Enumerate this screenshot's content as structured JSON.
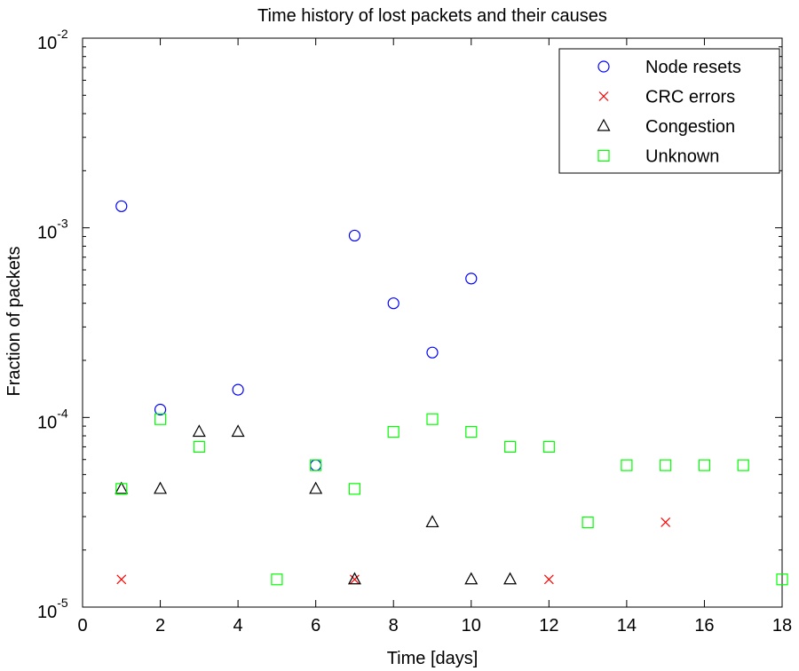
{
  "chart_data": {
    "type": "scatter",
    "title": "Time history of lost packets and their causes",
    "xlabel": "Time [days]",
    "ylabel": "Fraction of packets",
    "xlim": [
      0,
      18
    ],
    "ylim": [
      1e-05,
      0.01
    ],
    "yscale": "log",
    "xticks": [
      "0",
      "2",
      "4",
      "6",
      "8",
      "10",
      "12",
      "14",
      "16",
      "18"
    ],
    "yticks": [
      {
        "base": "10",
        "exp": "-5"
      },
      {
        "base": "10",
        "exp": "-4"
      },
      {
        "base": "10",
        "exp": "-3"
      },
      {
        "base": "10",
        "exp": "-2"
      }
    ],
    "grid": false,
    "legend_position": "top-right",
    "series": [
      {
        "name": "Node resets",
        "marker": "circle",
        "color": "#0000ff",
        "points": [
          [
            1,
            0.0013
          ],
          [
            2,
            0.00011
          ],
          [
            4,
            0.00014
          ],
          [
            6,
            5.6e-05
          ],
          [
            7,
            0.00091
          ],
          [
            8,
            0.0004
          ],
          [
            9,
            0.00022
          ],
          [
            10,
            0.00054
          ]
        ]
      },
      {
        "name": "CRC errors",
        "marker": "x",
        "color": "#ff0000",
        "points": [
          [
            1,
            1.4e-05
          ],
          [
            7,
            1.4e-05
          ],
          [
            12,
            1.4e-05
          ],
          [
            15,
            2.8e-05
          ]
        ]
      },
      {
        "name": "Congestion",
        "marker": "triangle",
        "color": "#000000",
        "points": [
          [
            1,
            4.2e-05
          ],
          [
            2,
            4.2e-05
          ],
          [
            3,
            8.4e-05
          ],
          [
            4,
            8.4e-05
          ],
          [
            6,
            4.2e-05
          ],
          [
            7,
            1.4e-05
          ],
          [
            9,
            2.8e-05
          ],
          [
            10,
            1.4e-05
          ],
          [
            11,
            1.4e-05
          ]
        ]
      },
      {
        "name": "Unknown",
        "marker": "square",
        "color": "#00ff00",
        "points": [
          [
            1,
            4.2e-05
          ],
          [
            2,
            9.8e-05
          ],
          [
            3,
            7e-05
          ],
          [
            5,
            1.4e-05
          ],
          [
            6,
            5.6e-05
          ],
          [
            7,
            4.2e-05
          ],
          [
            8,
            8.4e-05
          ],
          [
            9,
            9.8e-05
          ],
          [
            10,
            8.4e-05
          ],
          [
            11,
            7e-05
          ],
          [
            12,
            7e-05
          ],
          [
            13,
            2.8e-05
          ],
          [
            14,
            5.6e-05
          ],
          [
            15,
            5.6e-05
          ],
          [
            16,
            5.6e-05
          ],
          [
            17,
            5.6e-05
          ],
          [
            18,
            1.4e-05
          ]
        ]
      }
    ]
  }
}
